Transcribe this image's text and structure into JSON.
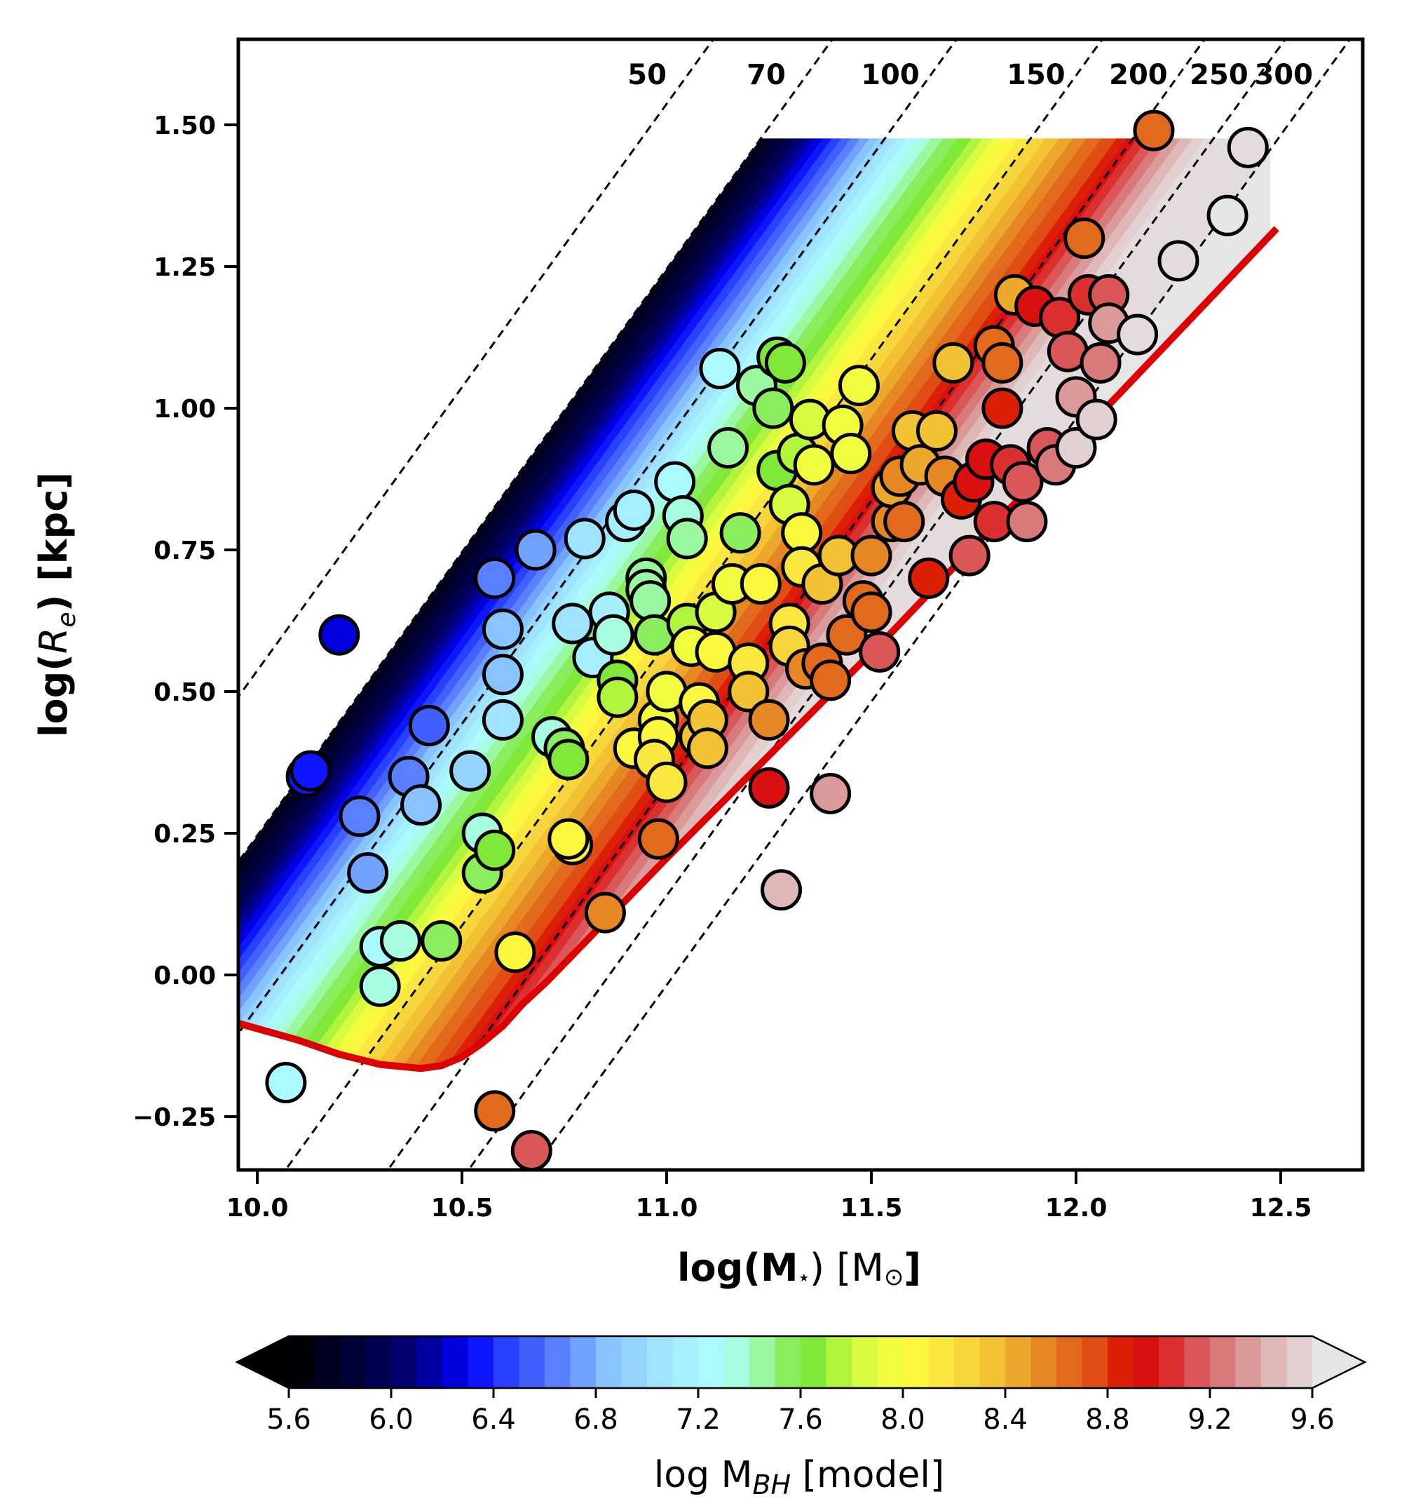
{
  "chart_data": {
    "type": "scatter",
    "title": "",
    "xlabel": "log(M⋆) [M⊙]",
    "xlabel_parts": {
      "pre": "log(M",
      "sub": "⋆",
      "mid": ") [M",
      "sub2": "⊙",
      "post": "]"
    },
    "ylabel": "log(Re) [kpc]",
    "ylabel_parts": {
      "pre": "log(",
      "var": "R",
      "sub": "e",
      "post": ") [kpc]"
    },
    "xlim": [
      9.952,
      12.7
    ],
    "ylim": [
      -0.345,
      1.652
    ],
    "x_ticks": [
      10.0,
      10.5,
      11.0,
      11.5,
      12.0,
      12.5
    ],
    "x_tick_labels": [
      "10.0",
      "10.5",
      "11.0",
      "11.5",
      "12.0",
      "12.5"
    ],
    "y_ticks": [
      -0.25,
      0.0,
      0.25,
      0.5,
      0.75,
      1.0,
      1.25,
      1.5
    ],
    "y_tick_labels": [
      "−0.25",
      "0.00",
      "0.25",
      "0.50",
      "0.75",
      "1.00",
      "1.25",
      "1.50"
    ],
    "grid": false,
    "sigma_lines": {
      "description": "dashed lines of constant velocity dispersion, slope 1 in log-log: logRe = logM - offset",
      "slope": 1.0,
      "lines": [
        {
          "label": "50",
          "offset": 9.463
        },
        {
          "label": "70",
          "offset": 9.754
        },
        {
          "label": "100",
          "offset": 10.057
        },
        {
          "label": "150",
          "offset": 10.413
        },
        {
          "label": "200",
          "offset": 10.663
        },
        {
          "label": "250",
          "offset": 10.86
        },
        {
          "label": "300",
          "offset": 11.018
        }
      ]
    },
    "model_band": {
      "description": "filled contour of model log MBH, iso-levels parallel to sigma lines; bounded above by sigma=70 line and log Re=1.476, right by logM=12.475, below by the red ZOE curve",
      "upper_offset": 9.754,
      "top_y": 1.476,
      "right_x": 12.475,
      "offset_to_value": [
        [
          9.754,
          5.7
        ],
        [
          9.84,
          6.0
        ],
        [
          9.928,
          6.4
        ],
        [
          10.02,
          6.8
        ],
        [
          10.11,
          7.2
        ],
        [
          10.2,
          7.5
        ],
        [
          10.27,
          7.7
        ],
        [
          10.349,
          8.0
        ],
        [
          10.45,
          8.3
        ],
        [
          10.55,
          8.6
        ],
        [
          10.624,
          8.8
        ],
        [
          10.7,
          9.1
        ],
        [
          10.78,
          9.4
        ],
        [
          10.84,
          9.6
        ],
        [
          11.2,
          9.8
        ]
      ]
    },
    "red_curve": {
      "color": "#dd0000",
      "points": [
        [
          9.952,
          -0.085
        ],
        [
          10.1,
          -0.115
        ],
        [
          10.2,
          -0.14
        ],
        [
          10.3,
          -0.158
        ],
        [
          10.4,
          -0.165
        ],
        [
          10.45,
          -0.16
        ],
        [
          10.5,
          -0.145
        ],
        [
          10.55,
          -0.12
        ],
        [
          10.6,
          -0.09
        ],
        [
          10.65,
          -0.05
        ],
        [
          10.707,
          -0.012
        ],
        [
          11.0,
          0.206
        ],
        [
          11.553,
          0.607
        ],
        [
          12.0,
          0.945
        ],
        [
          12.49,
          1.317
        ]
      ]
    },
    "series": [
      {
        "name": "galaxies",
        "marker": "circle",
        "color_by": "log MBH [model]",
        "points": [
          [
            10.07,
            -0.19,
            7.25
          ],
          [
            10.12,
            0.35,
            6.3
          ],
          [
            10.13,
            0.36,
            6.35
          ],
          [
            10.2,
            0.6,
            6.25
          ],
          [
            10.25,
            0.28,
            6.6
          ],
          [
            10.27,
            0.18,
            6.75
          ],
          [
            10.3,
            0.05,
            7.2
          ],
          [
            10.3,
            -0.02,
            7.3
          ],
          [
            10.35,
            0.06,
            7.3
          ],
          [
            10.37,
            0.35,
            6.6
          ],
          [
            10.4,
            0.3,
            6.8
          ],
          [
            10.42,
            0.44,
            6.55
          ],
          [
            10.45,
            0.06,
            7.55
          ],
          [
            10.52,
            0.36,
            6.9
          ],
          [
            10.55,
            0.25,
            7.35
          ],
          [
            10.55,
            0.18,
            7.5
          ],
          [
            10.58,
            0.7,
            6.6
          ],
          [
            10.58,
            -0.24,
            8.7
          ],
          [
            10.6,
            0.61,
            6.8
          ],
          [
            10.6,
            0.53,
            6.85
          ],
          [
            10.6,
            0.45,
            7.0
          ],
          [
            10.58,
            0.22,
            7.6
          ],
          [
            10.63,
            0.04,
            8.05
          ],
          [
            10.67,
            -0.31,
            9.1
          ],
          [
            10.68,
            0.75,
            6.75
          ],
          [
            10.72,
            0.42,
            7.3
          ],
          [
            10.75,
            0.4,
            7.55
          ],
          [
            10.76,
            0.38,
            7.6
          ],
          [
            10.77,
            0.23,
            8.0
          ],
          [
            10.76,
            0.24,
            8.0
          ],
          [
            10.77,
            0.62,
            7.05
          ],
          [
            10.8,
            0.77,
            7.0
          ],
          [
            10.82,
            0.56,
            7.15
          ],
          [
            10.85,
            0.11,
            8.55
          ],
          [
            10.86,
            0.64,
            7.1
          ],
          [
            10.87,
            0.6,
            7.3
          ],
          [
            10.88,
            0.52,
            7.6
          ],
          [
            10.88,
            0.49,
            7.7
          ],
          [
            10.9,
            0.8,
            7.1
          ],
          [
            10.92,
            0.82,
            7.15
          ],
          [
            10.92,
            0.4,
            8.0
          ],
          [
            10.95,
            0.7,
            7.4
          ],
          [
            10.95,
            0.68,
            7.45
          ],
          [
            10.96,
            0.66,
            7.4
          ],
          [
            10.97,
            0.6,
            7.5
          ],
          [
            10.98,
            0.45,
            7.9
          ],
          [
            10.98,
            0.42,
            8.05
          ],
          [
            10.97,
            0.38,
            8.1
          ],
          [
            10.98,
            0.24,
            8.6
          ],
          [
            11.0,
            0.34,
            8.2
          ],
          [
            11.0,
            0.5,
            7.9
          ],
          [
            11.02,
            0.87,
            7.2
          ],
          [
            11.04,
            0.81,
            7.3
          ],
          [
            11.05,
            0.77,
            7.4
          ],
          [
            11.05,
            0.62,
            7.7
          ],
          [
            11.06,
            0.58,
            7.9
          ],
          [
            11.08,
            0.48,
            8.05
          ],
          [
            11.08,
            0.42,
            8.3
          ],
          [
            11.1,
            0.45,
            8.3
          ],
          [
            11.1,
            0.4,
            8.35
          ],
          [
            11.12,
            0.64,
            7.8
          ],
          [
            11.12,
            0.57,
            8.0
          ],
          [
            11.13,
            1.07,
            7.2
          ],
          [
            11.15,
            0.93,
            7.45
          ],
          [
            11.16,
            0.69,
            7.9
          ],
          [
            11.18,
            0.78,
            7.55
          ],
          [
            11.2,
            0.55,
            8.2
          ],
          [
            11.2,
            0.5,
            8.3
          ],
          [
            11.22,
            1.04,
            7.4
          ],
          [
            11.23,
            0.69,
            8.0
          ],
          [
            11.25,
            0.45,
            8.5
          ],
          [
            11.25,
            0.33,
            8.9
          ],
          [
            11.26,
            1.0,
            7.55
          ],
          [
            11.27,
            0.89,
            7.6
          ],
          [
            11.27,
            1.09,
            7.6
          ],
          [
            11.28,
            0.15,
            9.45
          ],
          [
            11.29,
            1.08,
            7.65
          ],
          [
            11.3,
            0.83,
            7.8
          ],
          [
            11.3,
            0.62,
            8.1
          ],
          [
            11.3,
            0.58,
            8.25
          ],
          [
            11.32,
            0.92,
            7.75
          ],
          [
            11.33,
            0.78,
            8.0
          ],
          [
            11.33,
            0.72,
            8.1
          ],
          [
            11.34,
            0.54,
            8.5
          ],
          [
            11.35,
            0.98,
            7.8
          ],
          [
            11.36,
            0.9,
            7.95
          ],
          [
            11.38,
            0.69,
            8.3
          ],
          [
            11.38,
            0.55,
            8.6
          ],
          [
            11.4,
            0.32,
            9.35
          ],
          [
            11.4,
            0.52,
            8.7
          ],
          [
            11.42,
            0.74,
            8.3
          ],
          [
            11.43,
            0.97,
            7.9
          ],
          [
            11.44,
            0.6,
            8.7
          ],
          [
            11.45,
            0.92,
            7.95
          ],
          [
            11.47,
            1.04,
            7.95
          ],
          [
            11.48,
            0.66,
            8.6
          ],
          [
            11.5,
            0.74,
            8.55
          ],
          [
            11.5,
            0.64,
            8.7
          ],
          [
            11.52,
            0.57,
            9.1
          ],
          [
            11.55,
            0.8,
            8.55
          ],
          [
            11.55,
            0.86,
            8.45
          ],
          [
            11.57,
            0.88,
            8.5
          ],
          [
            11.58,
            0.8,
            8.7
          ],
          [
            11.6,
            0.96,
            8.3
          ],
          [
            11.62,
            0.9,
            8.45
          ],
          [
            11.64,
            0.7,
            8.8
          ],
          [
            11.66,
            0.96,
            8.35
          ],
          [
            11.68,
            0.88,
            8.55
          ],
          [
            11.7,
            1.08,
            8.35
          ],
          [
            11.72,
            0.84,
            8.8
          ],
          [
            11.74,
            0.74,
            9.15
          ],
          [
            11.75,
            0.87,
            8.9
          ],
          [
            11.78,
            0.91,
            8.95
          ],
          [
            11.8,
            1.11,
            8.6
          ],
          [
            11.8,
            0.8,
            9.05
          ],
          [
            11.82,
            1.08,
            8.65
          ],
          [
            11.82,
            1.0,
            8.85
          ],
          [
            11.84,
            0.9,
            9.0
          ],
          [
            11.85,
            1.2,
            8.4
          ],
          [
            11.87,
            0.87,
            9.15
          ],
          [
            11.88,
            0.8,
            9.25
          ],
          [
            11.9,
            1.18,
            8.9
          ],
          [
            11.93,
            0.93,
            9.2
          ],
          [
            11.95,
            0.9,
            9.25
          ],
          [
            11.96,
            1.16,
            9.0
          ],
          [
            11.98,
            1.1,
            9.1
          ],
          [
            12.0,
            1.02,
            9.3
          ],
          [
            12.0,
            0.93,
            9.5
          ],
          [
            12.02,
            1.3,
            8.7
          ],
          [
            12.03,
            1.2,
            9.05
          ],
          [
            12.05,
            0.98,
            9.55
          ],
          [
            12.06,
            1.08,
            9.25
          ],
          [
            12.08,
            1.2,
            9.2
          ],
          [
            12.08,
            1.15,
            9.3
          ],
          [
            12.15,
            1.13,
            9.6
          ],
          [
            12.19,
            1.49,
            8.7
          ],
          [
            12.25,
            1.26,
            9.6
          ],
          [
            12.37,
            1.34,
            9.8
          ],
          [
            12.42,
            1.46,
            9.6
          ]
        ]
      }
    ],
    "colorbar": {
      "label": "log MBH [model]",
      "label_parts": {
        "pre": "log M",
        "sub": "BH",
        "post": " [model]"
      },
      "vmin": 5.6,
      "vmax": 9.6,
      "ticks": [
        5.6,
        6.0,
        6.4,
        6.8,
        7.2,
        7.6,
        8.0,
        8.4,
        8.8,
        9.2,
        9.6
      ],
      "tick_labels": [
        "5.6",
        "6.0",
        "6.4",
        "6.8",
        "7.2",
        "7.6",
        "8.0",
        "8.4",
        "8.8",
        "9.2",
        "9.6"
      ],
      "extend": "both",
      "placement": "bottom",
      "step": 0.1,
      "color_stops": [
        [
          5.6,
          "#000000"
        ],
        [
          5.9,
          "#000040"
        ],
        [
          6.1,
          "#000080"
        ],
        [
          6.3,
          "#0000ff"
        ],
        [
          6.45,
          "#2a40ff"
        ],
        [
          6.65,
          "#5a80ff"
        ],
        [
          6.85,
          "#88c4ff"
        ],
        [
          7.05,
          "#a0e4ff"
        ],
        [
          7.25,
          "#aafaff"
        ],
        [
          7.4,
          "#a4ffd0"
        ],
        [
          7.5,
          "#8ef070"
        ],
        [
          7.65,
          "#80e838"
        ],
        [
          7.8,
          "#c8fa40"
        ],
        [
          8.0,
          "#ffff40"
        ],
        [
          8.2,
          "#f8e040"
        ],
        [
          8.4,
          "#f0b830"
        ],
        [
          8.6,
          "#e27820"
        ],
        [
          8.8,
          "#e04010"
        ],
        [
          8.9,
          "#d80000"
        ],
        [
          9.05,
          "#dc3030"
        ],
        [
          9.2,
          "#d86a6a"
        ],
        [
          9.4,
          "#dcaaaa"
        ],
        [
          9.6,
          "#e4dcdc"
        ]
      ],
      "under_color": "#000000",
      "over_color": "#e6e6e6"
    }
  }
}
